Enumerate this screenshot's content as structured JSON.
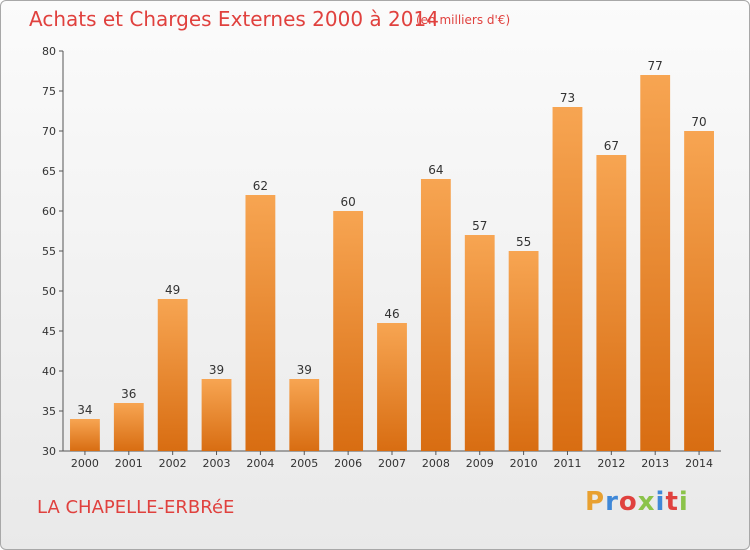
{
  "header": {
    "title": "Achats et Charges Externes 2000 à 2014",
    "subtitle": "(en milliers d'€)"
  },
  "footer": {
    "place": "LA CHAPELLE-ERBRéE",
    "logo_text": "Proxiti",
    "logo_colors": [
      "#e8a030",
      "#3f88d8",
      "#e0413e",
      "#8bc34a",
      "#3f88d8",
      "#e0413e",
      "#8bc34a"
    ]
  },
  "chart_data": {
    "type": "bar",
    "title": "Achats et Charges Externes 2000 à 2014",
    "subtitle": "(en milliers d'€)",
    "xlabel": "",
    "ylabel": "",
    "categories": [
      "2000",
      "2001",
      "2002",
      "2003",
      "2004",
      "2005",
      "2006",
      "2007",
      "2008",
      "2009",
      "2010",
      "2011",
      "2012",
      "2013",
      "2014"
    ],
    "values": [
      34,
      36,
      49,
      39,
      62,
      39,
      60,
      46,
      64,
      57,
      55,
      73,
      67,
      77,
      70
    ],
    "ylim": [
      30,
      80
    ],
    "yticks": [
      30,
      35,
      40,
      45,
      50,
      55,
      60,
      65,
      70,
      75,
      80
    ],
    "grid": false,
    "bar_color_top": "#f7a552",
    "bar_color_bottom": "#d86d12"
  }
}
